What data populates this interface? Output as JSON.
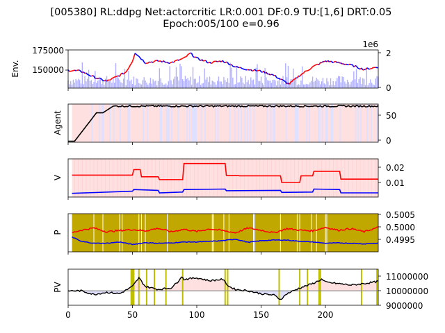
{
  "figure": {
    "title_line1": "[005380] RL:ddpg Net:actorcritic LR:0.001 DF:0.9 TU:[1,6] DRT:0.05",
    "title_line2": "Epoch:005/100 e=0.96",
    "colors": {
      "up": "#ff0000",
      "down": "#0000ff",
      "volume": "#b0b0ff",
      "agent_long": "#ffe0e0",
      "agent_short": "#e0e0ff",
      "p_fill": "#c0a800",
      "p_marker": "#ffffff",
      "pv_trade": "#bfbf00",
      "pv_base": "#808080"
    }
  },
  "chart_data": [
    {
      "type": "line",
      "panel": "Env.",
      "ylabel": "Env.",
      "xlim": [
        0,
        241
      ],
      "ylim": [
        130000,
        175000
      ],
      "yticks": [
        "150000",
        "175000"
      ],
      "y2ticks": [
        "0",
        "2"
      ],
      "y2_offset_label": "1e6",
      "keypoints_x": [
        0,
        10,
        20,
        30,
        40,
        45,
        50,
        52,
        60,
        70,
        80,
        90,
        95,
        100,
        110,
        120,
        125,
        130,
        140,
        150,
        160,
        170,
        172,
        180,
        190,
        200,
        210,
        220,
        230,
        241
      ],
      "keypoints_y": [
        151000,
        150000,
        143000,
        138000,
        145000,
        149000,
        162000,
        172000,
        160000,
        162000,
        160000,
        165000,
        171000,
        165000,
        160000,
        162000,
        159000,
        155000,
        152000,
        150000,
        145000,
        136000,
        135000,
        145000,
        155000,
        162000,
        160000,
        157000,
        152000,
        155000
      ]
    },
    {
      "type": "line",
      "panel": "Agent",
      "ylabel": "Agent",
      "xlim": [
        0,
        241
      ],
      "ylim": [
        -2,
        72
      ],
      "yticks": [
        "0",
        "50"
      ],
      "x": [
        0,
        5,
        22,
        27,
        35,
        241
      ],
      "y": [
        0,
        0,
        55,
        55,
        68,
        68
      ]
    },
    {
      "type": "line",
      "panel": "V",
      "ylabel": "V",
      "xlim": [
        0,
        241
      ],
      "ylim": [
        0.003,
        0.026
      ],
      "yticks": [
        "0.01",
        "0.02"
      ],
      "series": [
        {
          "color": "#ff0000",
          "x": [
            3,
            50,
            51,
            56,
            57,
            70,
            71,
            89,
            90,
            122,
            123,
            132,
            133,
            165,
            166,
            180,
            181,
            190,
            191,
            211,
            212,
            241
          ],
          "y": [
            0.0162,
            0.0162,
            0.0195,
            0.0195,
            0.0152,
            0.0152,
            0.0135,
            0.0135,
            0.0232,
            0.0232,
            0.016,
            0.016,
            0.0158,
            0.0158,
            0.0118,
            0.0118,
            0.0158,
            0.0158,
            0.0185,
            0.0185,
            0.0138,
            0.0138
          ]
        },
        {
          "color": "#0000ff",
          "x": [
            3,
            50,
            51,
            70,
            71,
            89,
            90,
            122,
            123,
            165,
            166,
            190,
            191,
            211,
            212,
            241
          ],
          "y": [
            0.0052,
            0.0065,
            0.0075,
            0.007,
            0.0055,
            0.006,
            0.0075,
            0.0078,
            0.0068,
            0.007,
            0.0058,
            0.006,
            0.0078,
            0.0075,
            0.0055,
            0.0055
          ]
        }
      ]
    },
    {
      "type": "line",
      "panel": "P",
      "ylabel": "P",
      "xlim": [
        0,
        241
      ],
      "ylim": [
        0.49935,
        0.50055
      ],
      "yticks": [
        "0.4995",
        "0.5000",
        "0.5005"
      ],
      "series": [
        {
          "color": "#ff0000",
          "x": [
            3,
            10,
            20,
            30,
            40,
            50,
            60,
            70,
            80,
            90,
            100,
            110,
            120,
            130,
            140,
            150,
            160,
            170,
            180,
            190,
            200,
            210,
            220,
            230,
            241
          ],
          "y": [
            0.49995,
            0.50003,
            0.5001,
            0.49998,
            0.50002,
            0.50005,
            0.50001,
            0.50009,
            0.49998,
            0.50006,
            0.49999,
            0.50007,
            0.50002,
            0.49995,
            0.5001,
            0.50003,
            0.49995,
            0.50008,
            0.50003,
            0.50001,
            0.50012,
            0.50003,
            0.50008,
            0.49998,
            0.50012
          ]
        },
        {
          "color": "#0000ff",
          "x": [
            3,
            10,
            20,
            30,
            40,
            50,
            60,
            70,
            80,
            90,
            100,
            110,
            120,
            130,
            140,
            150,
            160,
            170,
            180,
            190,
            200,
            210,
            220,
            230,
            241
          ],
          "y": [
            0.49982,
            0.49968,
            0.49962,
            0.49962,
            0.49966,
            0.49958,
            0.49964,
            0.49962,
            0.49963,
            0.49966,
            0.49966,
            0.49968,
            0.4997,
            0.49975,
            0.49965,
            0.4997,
            0.49972,
            0.49972,
            0.49968,
            0.49966,
            0.49962,
            0.49963,
            0.49962,
            0.4996,
            0.49962
          ]
        }
      ]
    },
    {
      "type": "line",
      "panel": "PV",
      "ylabel": "PV",
      "xlim": [
        0,
        241
      ],
      "ylim": [
        9000000,
        11500000
      ],
      "yticks": [
        "9000000",
        "10000000",
        "11000000"
      ],
      "baseline": 10000000,
      "x": [
        0,
        10,
        20,
        30,
        40,
        50,
        55,
        60,
        70,
        80,
        85,
        88,
        90,
        100,
        110,
        120,
        125,
        130,
        140,
        150,
        160,
        165,
        170,
        180,
        190,
        197,
        200,
        210,
        220,
        230,
        241
      ],
      "y": [
        10000000,
        10000000,
        9750000,
        9900000,
        9800000,
        10300000,
        10900000,
        10300000,
        10100000,
        10200000,
        10600000,
        11000000,
        10800000,
        10900000,
        10700000,
        10800000,
        10300000,
        10100000,
        10000000,
        9800000,
        9700000,
        9400000,
        9800000,
        10200000,
        10500000,
        10800000,
        10600000,
        10500000,
        10400000,
        10500000,
        10650000
      ],
      "trade_x": [
        49,
        50,
        51,
        55,
        61,
        67,
        76,
        89,
        122,
        124,
        164,
        180,
        186,
        195,
        196,
        228,
        240
      ]
    }
  ],
  "xaxis": {
    "ticks": [
      "0",
      "50",
      "100",
      "150",
      "200"
    ]
  }
}
